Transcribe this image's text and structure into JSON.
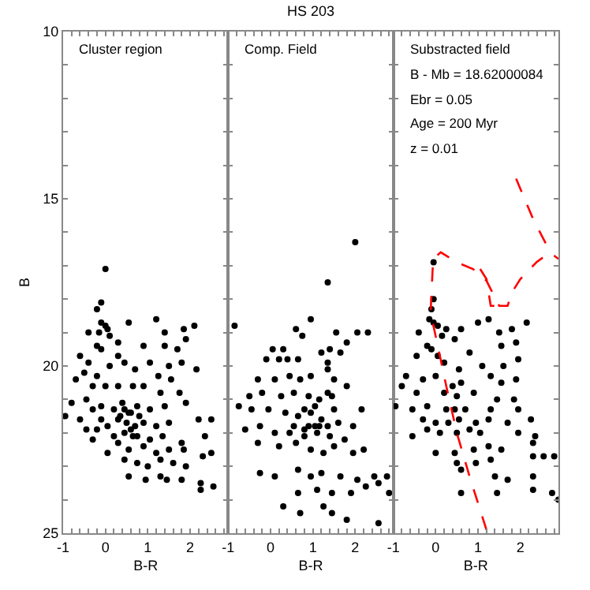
{
  "chart_data": [
    {
      "type": "scatter",
      "xlabel": "B-R",
      "ylabel": "B",
      "xlim": [
        -1,
        2.9
      ],
      "ylim": [
        25,
        10
      ],
      "marker": "circle",
      "xticks": [
        -1,
        {
          "value": -0.8,
          "label": null
        },
        {
          "value": -0.6,
          "label": null
        },
        {
          "value": -0.4,
          "label": null
        },
        {
          "value": -0.2,
          "label": null
        },
        0,
        {
          "value": 0.2,
          "label": null
        },
        {
          "value": 0.4,
          "label": null
        },
        {
          "value": 0.6,
          "label": null
        },
        {
          "value": 0.8,
          "label": null
        },
        1,
        {
          "value": 1.2,
          "label": null
        },
        {
          "value": 1.4,
          "label": null
        },
        {
          "value": 1.6,
          "label": null
        },
        {
          "value": 1.8,
          "label": null
        },
        2,
        {
          "value": 2.2,
          "label": null
        },
        {
          "value": 2.4,
          "label": null
        },
        {
          "value": 2.6,
          "label": null
        },
        {
          "value": 2.8,
          "label": null
        }
      ],
      "yticks": [
        10,
        {
          "value": 11,
          "label": null
        },
        {
          "value": 12,
          "label": null
        },
        {
          "value": 13,
          "label": null
        },
        {
          "value": 14,
          "label": null
        },
        15,
        {
          "value": 16,
          "label": null
        },
        {
          "value": 17,
          "label": null
        },
        {
          "value": 18,
          "label": null
        },
        {
          "value": 19,
          "label": null
        },
        20,
        {
          "value": 21,
          "label": null
        },
        {
          "value": 22,
          "label": null
        },
        {
          "value": 23,
          "label": null
        },
        {
          "value": 24,
          "label": null
        },
        25
      ],
      "annotations": [
        "Cluster region"
      ],
      "series": [
        {
          "color": "#000000",
          "x": [
            0,
            -0.1,
            -0.2,
            -0.1,
            0,
            0.05,
            -0.15,
            0.1,
            -0.4,
            0.55,
            1.2,
            1.4,
            1.85,
            2.1,
            0.3,
            -0.2,
            -0.1,
            -0.6,
            0.3,
            0.9,
            1.4,
            1.7,
            1.9,
            -0.5,
            -0.7,
            -0.4,
            -0.2,
            0.1,
            0.45,
            0.7,
            1.05,
            1.25,
            1.5,
            1.8,
            2.15,
            -0.3,
            0,
            0.3,
            0.65,
            0.9,
            1.3,
            1.55,
            1.75,
            -0.8,
            -0.45,
            -0.3,
            -0.1,
            0.2,
            0.4,
            0.55,
            0.75,
            1.05,
            1.4,
            1.9,
            -0.95,
            -0.6,
            -0.1,
            0.05,
            0.3,
            0.5,
            0.7,
            0.9,
            1.2,
            1.5,
            2.2,
            2.5,
            -0.45,
            -0.2,
            0.2,
            0.45,
            0.75,
            1.05,
            1.35,
            1.8,
            2.35,
            -0.3,
            0.3,
            0.55,
            0.9,
            1.2,
            1.5,
            1.85,
            0.05,
            2.3,
            2.5,
            0.45,
            0.75,
            1,
            1.3,
            1.6,
            1.9,
            0.55,
            0.95,
            1.3,
            1.45,
            1.8,
            2.25,
            2.25,
            2.55,
            0.35,
            0.6,
            0.6,
            0.8,
            0.45,
            0.65
          ],
          "values": [
            17.1,
            18.1,
            18.3,
            18.7,
            18.8,
            18.9,
            19,
            19.1,
            19,
            18.7,
            18.6,
            19,
            18.9,
            18.8,
            19.3,
            19.4,
            19.5,
            19.7,
            19.7,
            19.4,
            19.4,
            19.5,
            19.2,
            20.2,
            20.4,
            19.9,
            20.3,
            20,
            19.9,
            20.1,
            19.9,
            20.3,
            20,
            19.9,
            20.1,
            20.6,
            20.6,
            20.6,
            20.6,
            20.6,
            20.8,
            20.4,
            20.8,
            21.1,
            21,
            21.3,
            21.2,
            21.3,
            21.1,
            21.4,
            21.2,
            21.3,
            21.2,
            21.1,
            21.5,
            21.6,
            21.6,
            21.8,
            21.6,
            21.7,
            21.8,
            21.7,
            21.8,
            21.7,
            21.6,
            21.6,
            21.9,
            21.9,
            22.1,
            22,
            22.1,
            22.2,
            22.1,
            22.3,
            22.1,
            22.2,
            22.3,
            22.5,
            22.4,
            22.6,
            22.5,
            22.5,
            22.6,
            22.7,
            22.6,
            22.8,
            22.9,
            23,
            22.8,
            22.9,
            23,
            23.3,
            23.4,
            23.3,
            23.4,
            23.4,
            23.5,
            23.7,
            23.6,
            21.5,
            21.4,
            21.9,
            21.5,
            21.3,
            22.1
          ]
        }
      ]
    },
    {
      "type": "scatter",
      "title": "HS 203",
      "xlabel": "B-R",
      "xlim": [
        -1,
        2.9
      ],
      "ylim": [
        25,
        10
      ],
      "marker": "circle",
      "tick_labels": "x",
      "xticks": [
        -1,
        {
          "value": -0.8,
          "label": null
        },
        {
          "value": -0.6,
          "label": null
        },
        {
          "value": -0.4,
          "label": null
        },
        {
          "value": -0.2,
          "label": null
        },
        0,
        {
          "value": 0.2,
          "label": null
        },
        {
          "value": 0.4,
          "label": null
        },
        {
          "value": 0.6,
          "label": null
        },
        {
          "value": 0.8,
          "label": null
        },
        1,
        {
          "value": 1.2,
          "label": null
        },
        {
          "value": 1.4,
          "label": null
        },
        {
          "value": 1.6,
          "label": null
        },
        {
          "value": 1.8,
          "label": null
        },
        2,
        {
          "value": 2.2,
          "label": null
        },
        {
          "value": 2.4,
          "label": null
        },
        {
          "value": 2.6,
          "label": null
        },
        {
          "value": 2.8,
          "label": null
        }
      ],
      "yticks": [
        {
          "value": 10,
          "label": null
        },
        {
          "value": 11,
          "label": null
        },
        {
          "value": 12,
          "label": null
        },
        {
          "value": 13,
          "label": null
        },
        {
          "value": 14,
          "label": null
        },
        {
          "value": 15,
          "label": null
        },
        {
          "value": 16,
          "label": null
        },
        {
          "value": 17,
          "label": null
        },
        {
          "value": 18,
          "label": null
        },
        {
          "value": 19,
          "label": null
        },
        {
          "value": 20,
          "label": null
        },
        {
          "value": 21,
          "label": null
        },
        {
          "value": 22,
          "label": null
        },
        {
          "value": 23,
          "label": null
        },
        {
          "value": 24,
          "label": null
        },
        {
          "value": 25,
          "label": null
        }
      ],
      "annotations": [
        "Comp. Field"
      ],
      "series": [
        {
          "color": "#000000",
          "x": [
            2,
            1.35,
            -0.85,
            0.95,
            0.6,
            0.75,
            1.55,
            2.05,
            2.3,
            1.8,
            0.05,
            0.3,
            1.4,
            -0.1,
            0.2,
            0.4,
            0.65,
            1.2,
            1.35,
            1.65,
            -0.3,
            0.1,
            0.45,
            0.7,
            0.95,
            1.35,
            1.5,
            1.8,
            -0.5,
            -0.2,
            0.25,
            0.55,
            0.9,
            1.15,
            1.45,
            2.15,
            -0.75,
            -0.45,
            -0.05,
            0.35,
            0.65,
            0.95,
            1.2,
            1.6,
            1.95,
            -0.6,
            -0.25,
            0.1,
            0.45,
            0.8,
            1.1,
            1.4,
            1.75,
            -0.3,
            0.2,
            0.6,
            0.95,
            1.25,
            1.5,
            1.95,
            2.2,
            -0.25,
            0.1,
            0.65,
            0.95,
            1.2,
            1.65,
            2.05,
            2.45,
            2.75,
            0.65,
            1.1,
            1.45,
            1.9,
            2.25,
            2.55,
            2.8,
            0.3,
            0.7,
            1.25,
            1.45,
            1.8,
            2.55,
            0.8,
            0.9,
            1.05,
            1.15,
            0.8,
            1.05,
            0.55,
            1.35,
            1.5,
            1.35
          ],
          "values": [
            16.3,
            17.5,
            18.8,
            18.6,
            18.9,
            19.1,
            19,
            19,
            19,
            19.3,
            19.5,
            19.5,
            19.5,
            19.8,
            19.8,
            19.8,
            19.8,
            19.6,
            19.9,
            19.6,
            20.4,
            20.4,
            20.3,
            20.4,
            20.3,
            20.1,
            20.4,
            20.6,
            20.9,
            20.8,
            20.9,
            20.8,
            20.9,
            21,
            20.9,
            21.3,
            21.2,
            21.3,
            21.3,
            21.4,
            21.5,
            21.4,
            21.6,
            21.7,
            21.8,
            21.9,
            21.8,
            22,
            22,
            22.1,
            22,
            22.1,
            22.2,
            22.3,
            22.4,
            22.3,
            22.5,
            22.6,
            22.4,
            22.6,
            22.5,
            23.2,
            23.3,
            23.1,
            23.3,
            23.2,
            23.3,
            23.4,
            23.3,
            23.3,
            23.8,
            23.7,
            23.8,
            23.8,
            23.6,
            23.5,
            23.8,
            24.2,
            24.4,
            24.2,
            24.4,
            24.6,
            24.7,
            21.9,
            21.8,
            21.8,
            21.8,
            21.3,
            21.2,
            21.8,
            21.8,
            21.3,
            20.8
          ]
        }
      ]
    },
    {
      "type": "scatter",
      "xlabel": "B-R",
      "xlim": [
        -1,
        2.9
      ],
      "ylim": [
        25,
        10
      ],
      "marker": "circle",
      "tick_labels": "x",
      "xticks": [
        -1,
        {
          "value": -0.8,
          "label": null
        },
        {
          "value": -0.6,
          "label": null
        },
        {
          "value": -0.4,
          "label": null
        },
        {
          "value": -0.2,
          "label": null
        },
        0,
        {
          "value": 0.2,
          "label": null
        },
        {
          "value": 0.4,
          "label": null
        },
        {
          "value": 0.6,
          "label": null
        },
        {
          "value": 0.8,
          "label": null
        },
        1,
        {
          "value": 1.2,
          "label": null
        },
        {
          "value": 1.4,
          "label": null
        },
        {
          "value": 1.6,
          "label": null
        },
        {
          "value": 1.8,
          "label": null
        },
        2,
        {
          "value": 2.2,
          "label": null
        },
        {
          "value": 2.4,
          "label": null
        },
        {
          "value": 2.6,
          "label": null
        },
        {
          "value": 2.8,
          "label": null
        }
      ],
      "yticks": [
        {
          "value": 10,
          "label": null
        },
        {
          "value": 11,
          "label": null
        },
        {
          "value": 12,
          "label": null
        },
        {
          "value": 13,
          "label": null
        },
        {
          "value": 14,
          "label": null
        },
        {
          "value": 15,
          "label": null
        },
        {
          "value": 16,
          "label": null
        },
        {
          "value": 17,
          "label": null
        },
        {
          "value": 18,
          "label": null
        },
        {
          "value": 19,
          "label": null
        },
        {
          "value": 20,
          "label": null
        },
        {
          "value": 21,
          "label": null
        },
        {
          "value": 22,
          "label": null
        },
        {
          "value": 23,
          "label": null
        },
        {
          "value": 24,
          "label": null
        },
        {
          "value": 25,
          "label": null
        }
      ],
      "annotations": [
        "Substracted field",
        "B - Mb = 18.62000084",
        "Ebr = 0.05",
        "Age = 200 Myr",
        "z = 0.01"
      ],
      "series": [
        {
          "color": "#000000",
          "x": [
            -0.05,
            -0.05,
            -0.1,
            -0.15,
            -0.05,
            0.05,
            -0.4,
            0.25,
            0.6,
            1,
            1.25,
            1.8,
            2.15,
            0.15,
            0.45,
            1.5,
            -0.2,
            -0.1,
            0.8,
            1.55,
            1.9,
            -0.45,
            0.05,
            0.2,
            0.55,
            1.1,
            1.6,
            1.95,
            -0.7,
            -0.3,
            0,
            0.4,
            0.6,
            1.3,
            1.55,
            1.9,
            -0.8,
            -0.45,
            0.2,
            0.5,
            0.9,
            1.45,
            1.85,
            -0.95,
            -0.55,
            -0.2,
            0.25,
            0.45,
            0.7,
            1.3,
            1.95,
            -0.3,
            0,
            0.3,
            0.55,
            0.95,
            1.25,
            1.7,
            2.25,
            -0.2,
            0.1,
            0.5,
            0.8,
            1.05,
            1.95,
            2.35,
            -0.55,
            0,
            0.45,
            0.9,
            1.25,
            1.55,
            2.3,
            0.5,
            0.95,
            1.3,
            2.3,
            2.55,
            2.8,
            0.6,
            1.4,
            1.7,
            2.3,
            0.6,
            1.45,
            2.3,
            2.75,
            2.9
          ],
          "values": [
            16.9,
            18,
            18.3,
            18.6,
            18.7,
            18.8,
            19,
            18.9,
            18.9,
            18.7,
            18.6,
            18.9,
            18.7,
            19.1,
            19.2,
            19,
            19.4,
            19.5,
            19.6,
            19.4,
            19.3,
            19.7,
            19.7,
            19.9,
            20.1,
            20,
            20,
            19.8,
            20.3,
            20.4,
            20.3,
            20.6,
            20.5,
            20.3,
            20.5,
            20.4,
            20.6,
            20.8,
            20.8,
            20.9,
            20.8,
            21,
            21,
            21.2,
            21.3,
            21.2,
            21.3,
            21.3,
            21.3,
            21.3,
            21.3,
            21.6,
            21.7,
            21.7,
            21.6,
            21.7,
            21.6,
            21.7,
            21.6,
            21.9,
            22,
            22,
            21.9,
            22,
            22,
            22.1,
            22.1,
            22.6,
            22.6,
            22.5,
            22.4,
            22.5,
            22.3,
            22.9,
            22.9,
            22.8,
            22.7,
            22.7,
            22.7,
            23.1,
            23.3,
            23.4,
            23.3,
            23.8,
            23.8,
            23.7,
            23.8,
            24
          ]
        },
        {
          "type": "line",
          "marker": "none",
          "color": "#ff0000",
          "line_style": "dashed",
          "x": [
            1.2,
            0.8,
            0.5,
            0.25,
            0.1,
            -0.12,
            -0.06,
            0.12,
            0.5,
            0.88,
            1.2,
            1.38,
            1.5,
            1.7,
            1.8,
            2,
            2.38,
            2.7,
            2.9
          ],
          "values": [
            24.9,
            23.3,
            22,
            20.6,
            19.7,
            18.4,
            16.8,
            16.6,
            16.9,
            17.1,
            17.45,
            17.9,
            18.2,
            18.2,
            17.8,
            17.4,
            16.9,
            16.6,
            16.8
          ]
        },
        {
          "type": "line",
          "marker": "none",
          "color": "#ff0000",
          "line_style": "dashed",
          "x": [
            1.05,
            1.2,
            1.3,
            1.5
          ],
          "values": [
            17.1,
            17.4,
            18.2,
            18.2
          ]
        },
        {
          "type": "line",
          "marker": "none",
          "color": "#ff0000",
          "line_style": "dashed",
          "x": [
            1.9,
            2.3,
            2.75
          ],
          "values": [
            14.4,
            15.6,
            16.7
          ]
        }
      ]
    }
  ]
}
